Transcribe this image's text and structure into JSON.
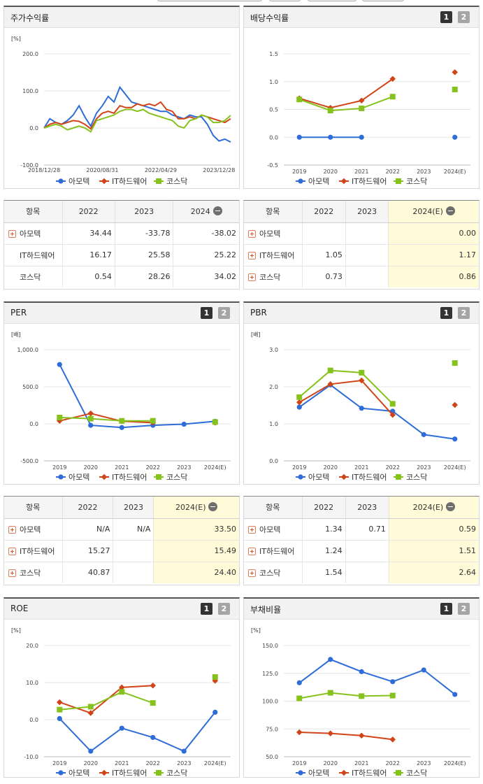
{
  "legend": [
    "아모텍",
    "IT하드웨어",
    "코스닥"
  ],
  "colors": {
    "amotech": "#2e6cd8",
    "it": "#d04418",
    "kosdaq": "#86c21c"
  },
  "panels": {
    "stock_return": {
      "title": "주가수익률",
      "unit": "[%]"
    },
    "dividend": {
      "title": "배당수익률",
      "unit": "",
      "btn1": "1",
      "btn2": "2"
    },
    "per": {
      "title": "PER",
      "unit": "[배]",
      "btn1": "1",
      "btn2": "2"
    },
    "pbr": {
      "title": "PBR",
      "unit": "[배]",
      "btn1": "1",
      "btn2": "2"
    },
    "roe": {
      "title": "ROE",
      "unit": "[%]",
      "btn1": "1",
      "btn2": "2"
    },
    "debt": {
      "title": "부채비율",
      "unit": "[%]",
      "btn1": "1",
      "btn2": "2"
    }
  },
  "tables": {
    "stock_return": {
      "headers": [
        "항목",
        "2022",
        "2023",
        "2024"
      ],
      "rows": [
        {
          "name": "아모텍",
          "vals": [
            "34.44",
            "-33.78",
            "-38.02"
          ]
        },
        {
          "name": "IT하드웨어",
          "vals": [
            "16.17",
            "25.58",
            "25.22"
          ]
        },
        {
          "name": "코스닥",
          "vals": [
            "0.54",
            "28.26",
            "34.02"
          ]
        }
      ]
    },
    "dividend": {
      "headers": [
        "항목",
        "2022",
        "2023",
        "2024(E)"
      ],
      "rows": [
        {
          "name": "아모텍",
          "vals": [
            "",
            "",
            "0.00"
          ]
        },
        {
          "name": "IT하드웨어",
          "vals": [
            "1.05",
            "",
            "1.17"
          ]
        },
        {
          "name": "코스닥",
          "vals": [
            "0.73",
            "",
            "0.86"
          ]
        }
      ]
    },
    "per": {
      "headers": [
        "항목",
        "2022",
        "2023",
        "2024(E)"
      ],
      "rows": [
        {
          "name": "아모텍",
          "vals": [
            "N/A",
            "N/A",
            "33.50"
          ]
        },
        {
          "name": "IT하드웨어",
          "vals": [
            "15.27",
            "",
            "15.49"
          ]
        },
        {
          "name": "코스닥",
          "vals": [
            "40.87",
            "",
            "24.40"
          ]
        }
      ]
    },
    "pbr": {
      "headers": [
        "항목",
        "2022",
        "2023",
        "2024(E)"
      ],
      "rows": [
        {
          "name": "아모텍",
          "vals": [
            "1.34",
            "0.71",
            "0.59"
          ]
        },
        {
          "name": "IT하드웨어",
          "vals": [
            "1.24",
            "",
            "1.51"
          ]
        },
        {
          "name": "코스닥",
          "vals": [
            "1.54",
            "",
            "2.64"
          ]
        }
      ]
    }
  },
  "chart_data": [
    {
      "id": "stock_return",
      "type": "line",
      "title": "주가수익률",
      "ylabel": "[%]",
      "ylim": [
        -100,
        200
      ],
      "yticks": [
        "200.0",
        "100.0",
        "0.0",
        "-100.0"
      ],
      "xticks": [
        "2018/12/28",
        "2020/08/31",
        "2022/04/29",
        "2023/12/28"
      ],
      "x": [
        "2018/12",
        "2019/02",
        "2019/04",
        "2019/06",
        "2019/08",
        "2019/10",
        "2019/12",
        "2020/02",
        "2020/04",
        "2020/06",
        "2020/08",
        "2020/10",
        "2020/12",
        "2021/02",
        "2021/04",
        "2021/06",
        "2021/08",
        "2021/10",
        "2021/12",
        "2022/02",
        "2022/04",
        "2022/06",
        "2022/08",
        "2022/10",
        "2022/12",
        "2023/02",
        "2023/04",
        "2023/06",
        "2023/08",
        "2023/10",
        "2023/12",
        "2024/02",
        "2024/04"
      ],
      "series": [
        {
          "name": "아모텍",
          "values": [
            0,
            25,
            15,
            10,
            20,
            35,
            60,
            30,
            5,
            40,
            60,
            85,
            70,
            110,
            90,
            70,
            65,
            60,
            55,
            50,
            45,
            45,
            35,
            30,
            25,
            35,
            30,
            30,
            10,
            -20,
            -35,
            -30,
            -38
          ]
        },
        {
          "name": "IT하드웨어",
          "values": [
            0,
            10,
            15,
            10,
            15,
            20,
            18,
            10,
            -2,
            25,
            40,
            45,
            40,
            60,
            55,
            55,
            65,
            60,
            65,
            60,
            70,
            50,
            45,
            25,
            25,
            30,
            25,
            35,
            30,
            25,
            20,
            15,
            25
          ]
        },
        {
          "name": "코스닥",
          "values": [
            0,
            5,
            10,
            5,
            -5,
            0,
            5,
            0,
            -10,
            20,
            25,
            30,
            35,
            45,
            50,
            50,
            45,
            50,
            40,
            35,
            30,
            25,
            20,
            5,
            0,
            20,
            25,
            35,
            30,
            15,
            15,
            20,
            34
          ]
        }
      ]
    },
    {
      "id": "dividend",
      "type": "line",
      "title": "배당수익률",
      "ylim": [
        -0.5,
        1.5
      ],
      "yticks": [
        "1.5",
        "1.0",
        "0.5",
        "0.0",
        "-0.5"
      ],
      "categories": [
        "2019",
        "2020",
        "2021",
        "2022",
        "2023",
        "2024(E)"
      ],
      "series": [
        {
          "name": "아모텍",
          "values": [
            0,
            0,
            0,
            null,
            null,
            0
          ]
        },
        {
          "name": "IT하드웨어",
          "values": [
            0.7,
            0.53,
            0.66,
            1.05,
            null,
            1.17
          ]
        },
        {
          "name": "코스닥",
          "values": [
            0.68,
            0.48,
            0.52,
            0.73,
            null,
            0.86
          ]
        }
      ]
    },
    {
      "id": "per",
      "type": "line",
      "title": "PER",
      "ylabel": "[배]",
      "ylim": [
        -500,
        1000
      ],
      "yticks": [
        "1,000.0",
        "500.0",
        "0.0",
        "-500.0"
      ],
      "categories": [
        "2019",
        "2020",
        "2021",
        "2022",
        "2023",
        "2024(E)"
      ],
      "series": [
        {
          "name": "아모텍",
          "values": [
            800,
            -20,
            -50,
            -20,
            -5,
            33.5
          ]
        },
        {
          "name": "IT하드웨어",
          "values": [
            40,
            140,
            35,
            15.27,
            null,
            15.49
          ]
        },
        {
          "name": "코스닥",
          "values": [
            85,
            70,
            40,
            40.87,
            null,
            24.4
          ]
        }
      ]
    },
    {
      "id": "pbr",
      "type": "line",
      "title": "PBR",
      "ylabel": "[배]",
      "ylim": [
        0,
        3
      ],
      "yticks": [
        "3.0",
        "2.0",
        "1.0",
        "0.0"
      ],
      "categories": [
        "2019",
        "2020",
        "2021",
        "2022",
        "2023",
        "2024(E)"
      ],
      "series": [
        {
          "name": "아모텍",
          "values": [
            1.45,
            2.05,
            1.42,
            1.34,
            0.71,
            0.59
          ]
        },
        {
          "name": "IT하드웨어",
          "values": [
            1.58,
            2.07,
            2.17,
            1.24,
            null,
            1.51
          ]
        },
        {
          "name": "코스닥",
          "values": [
            1.72,
            2.44,
            2.38,
            1.54,
            null,
            2.64
          ]
        }
      ]
    },
    {
      "id": "roe",
      "type": "line",
      "title": "ROE",
      "ylabel": "[%]",
      "ylim": [
        -10,
        20
      ],
      "yticks": [
        "20.0",
        "10.0",
        "0.0",
        "-10.0"
      ],
      "categories": [
        "2019",
        "2020",
        "2021",
        "2022",
        "2023",
        "2024(E)"
      ],
      "series": [
        {
          "name": "아모텍",
          "values": [
            0.3,
            -8.5,
            -2.3,
            -4.8,
            -8.5,
            2.0
          ]
        },
        {
          "name": "IT하드웨어",
          "values": [
            4.7,
            1.8,
            8.7,
            9.2,
            null,
            10.5
          ]
        },
        {
          "name": "코스닥",
          "values": [
            2.7,
            3.5,
            7.5,
            4.5,
            null,
            11.5
          ]
        }
      ]
    },
    {
      "id": "debt",
      "type": "line",
      "title": "부채비율",
      "ylabel": "[%]",
      "ylim": [
        50,
        150
      ],
      "yticks": [
        "150.0",
        "125.0",
        "100.0",
        "75.0",
        "50.0"
      ],
      "categories": [
        "2019",
        "2020",
        "2021",
        "2022",
        "2023",
        "2024(E)"
      ],
      "series": [
        {
          "name": "아모텍",
          "values": [
            116.5,
            137.5,
            126.5,
            117.5,
            128,
            106
          ]
        },
        {
          "name": "IT하드웨어",
          "values": [
            72,
            71,
            69,
            65.5,
            null,
            null
          ]
        },
        {
          "name": "코스닥",
          "values": [
            102.5,
            107.5,
            104.5,
            105,
            null,
            null
          ]
        }
      ]
    }
  ]
}
